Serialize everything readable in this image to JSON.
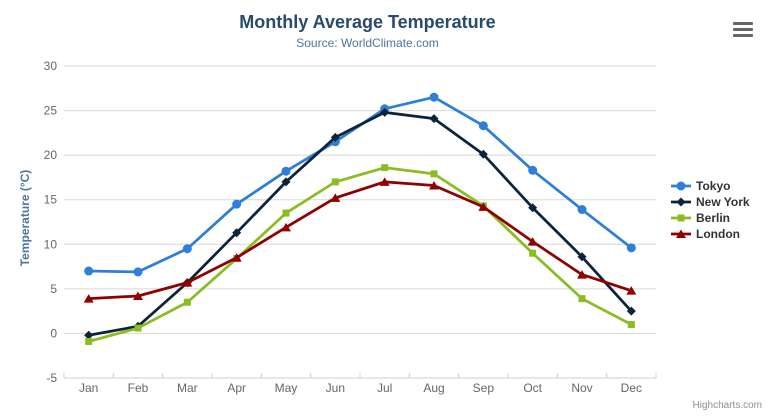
{
  "chart": {
    "title": "Monthly Average Temperature",
    "subtitle": "Source: WorldClimate.com",
    "credits": "Highcharts.com"
  },
  "chart_data": {
    "type": "line",
    "title": "Monthly Average Temperature",
    "subtitle": "Source: WorldClimate.com",
    "categories": [
      "Jan",
      "Feb",
      "Mar",
      "Apr",
      "May",
      "Jun",
      "Jul",
      "Aug",
      "Sep",
      "Oct",
      "Nov",
      "Dec"
    ],
    "series": [
      {
        "name": "Tokyo",
        "color": "#2f7ed8",
        "marker": "circle",
        "values": [
          7.0,
          6.9,
          9.5,
          14.5,
          18.2,
          21.5,
          25.2,
          26.5,
          23.3,
          18.3,
          13.9,
          9.6
        ]
      },
      {
        "name": "New York",
        "color": "#0d233a",
        "marker": "diamond",
        "values": [
          -0.2,
          0.8,
          5.7,
          11.3,
          17.0,
          22.0,
          24.8,
          24.1,
          20.1,
          14.1,
          8.6,
          2.5
        ]
      },
      {
        "name": "Berlin",
        "color": "#8bbc21",
        "marker": "square",
        "values": [
          -0.9,
          0.6,
          3.5,
          8.4,
          13.5,
          17.0,
          18.6,
          17.9,
          14.3,
          9.0,
          3.9,
          1.0
        ]
      },
      {
        "name": "London",
        "color": "#910000",
        "marker": "triangle",
        "values": [
          3.9,
          4.2,
          5.7,
          8.5,
          11.9,
          15.2,
          17.0,
          16.6,
          14.2,
          10.3,
          6.6,
          4.8
        ]
      }
    ],
    "xlabel": "",
    "ylabel": "Temperature (°C)",
    "ylim": [
      -5,
      30
    ],
    "yticks": [
      -5,
      0,
      5,
      10,
      15,
      20,
      25,
      30
    ],
    "grid": true,
    "legend_position": "right"
  },
  "style": {
    "grid_color": "#d8d8d8",
    "axis_line_color": "#c0d0e0",
    "tick_label_color": "#666666"
  }
}
